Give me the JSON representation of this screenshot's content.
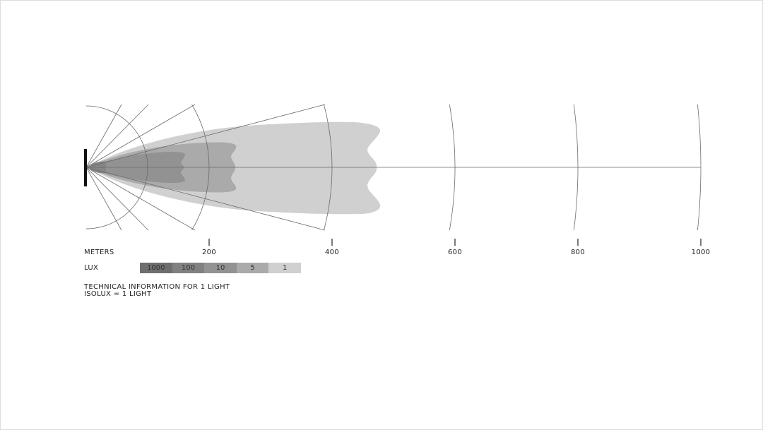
{
  "meters_label": "METERS",
  "lux_label": "LUX",
  "distance_ticks": [
    200,
    400,
    600,
    800,
    1000
  ],
  "legend": [
    {
      "label": "1000",
      "color": "#6e6e6e"
    },
    {
      "label": "100",
      "color": "#808080"
    },
    {
      "label": "10",
      "color": "#929292"
    },
    {
      "label": "5",
      "color": "#aaaaaa"
    },
    {
      "label": "1",
      "color": "#d0d0d0"
    }
  ],
  "note_line1": "TECHNICAL INFORMATION FOR 1 LIGHT",
  "note_line2": "ISOLUX = 1 LIGHT"
}
